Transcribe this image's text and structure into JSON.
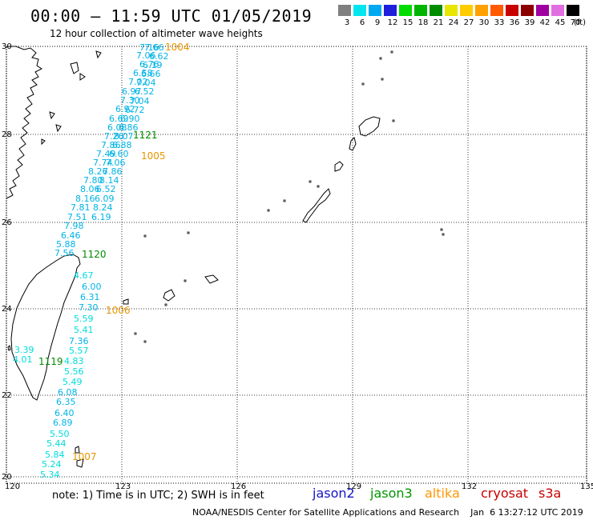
{
  "header": {
    "title": "00:00 – 11:59 UTC 01/05/2019",
    "subtitle": "12 hour collection of altimeter wave heights"
  },
  "colorbar": {
    "labels": [
      "3",
      "6",
      "9",
      "12",
      "15",
      "18",
      "21",
      "24",
      "27",
      "30",
      "33",
      "36",
      "39",
      "42",
      "45",
      "70"
    ],
    "colors": [
      "#7f7f7f",
      "#00e5ee",
      "#00a8f0",
      "#1e1edc",
      "#00dc00",
      "#00b400",
      "#008c00",
      "#e6e600",
      "#ffcc00",
      "#ffa000",
      "#ff5a00",
      "#c80000",
      "#8c0000",
      "#a000a0",
      "#e070e0",
      "#000000"
    ],
    "unit": "(ft)"
  },
  "axes": {
    "lon_ticks": [
      "120",
      "123",
      "126",
      "129",
      "132",
      "135"
    ],
    "lat_ticks": [
      "30",
      "28",
      "26",
      "24",
      "22",
      "20"
    ]
  },
  "wave_heights": [
    {
      "t": "7.16",
      "c": "#00b4e6"
    },
    {
      "t": "7.66",
      "c": "#00b4e6"
    },
    {
      "t": "7.06",
      "c": "#00b4e6"
    },
    {
      "t": "6.62",
      "c": "#00b4e6"
    },
    {
      "t": "6.76",
      "c": "#00b4e6"
    },
    {
      "t": "6.19",
      "c": "#00b4e6"
    },
    {
      "t": "6.58",
      "c": "#00b4e6"
    },
    {
      "t": "6.66",
      "c": "#00b4e6"
    },
    {
      "t": "7.02",
      "c": "#00b4e6"
    },
    {
      "t": "7.04",
      "c": "#00b4e6"
    },
    {
      "t": "6.97",
      "c": "#00b4e6"
    },
    {
      "t": "6.52",
      "c": "#00b4e6"
    },
    {
      "t": "7.30",
      "c": "#00b4e6"
    },
    {
      "t": "7.04",
      "c": "#00b4e6"
    },
    {
      "t": "6.92",
      "c": "#00b4e6"
    },
    {
      "t": "6.72",
      "c": "#00b4e6"
    },
    {
      "t": "6.69",
      "c": "#00b4e6"
    },
    {
      "t": "6.90",
      "c": "#00b4e6"
    },
    {
      "t": "6.08",
      "c": "#00b4e6"
    },
    {
      "t": "6.86",
      "c": "#00b4e6"
    },
    {
      "t": "7.26",
      "c": "#00b4e6"
    },
    {
      "t": "8.07",
      "c": "#00b4e6"
    },
    {
      "t": "7.86",
      "c": "#00b4e6"
    },
    {
      "t": "6.88",
      "c": "#00b4e6"
    },
    {
      "t": "7.49",
      "c": "#00b4e6"
    },
    {
      "t": "6.60",
      "c": "#00b4e6"
    },
    {
      "t": "7.74",
      "c": "#00b4e6"
    },
    {
      "t": "7.06",
      "c": "#00b4e6"
    },
    {
      "t": "8.26",
      "c": "#00b4e6"
    },
    {
      "t": "7.86",
      "c": "#00b4e6"
    },
    {
      "t": "7.80",
      "c": "#00b4e6"
    },
    {
      "t": "8.14",
      "c": "#00b4e6"
    },
    {
      "t": "8.06",
      "c": "#00b4e6"
    },
    {
      "t": "6.52",
      "c": "#00b4e6"
    },
    {
      "t": "8.16",
      "c": "#00b4e6"
    },
    {
      "t": "6.09",
      "c": "#00b4e6"
    },
    {
      "t": "7.81",
      "c": "#00b4e6"
    },
    {
      "t": "8.24",
      "c": "#00b4e6"
    },
    {
      "t": "7.51",
      "c": "#00b4e6"
    },
    {
      "t": "6.19",
      "c": "#00b4e6"
    },
    {
      "t": "7.98",
      "c": "#00b4e6"
    },
    {
      "t": "6.46",
      "c": "#00b4e6"
    },
    {
      "t": "5.88",
      "c": "#00b4e6"
    },
    {
      "t": "7.56",
      "c": "#00b4e6"
    },
    {
      "t": "4.67",
      "c": "#00dcdc"
    },
    {
      "t": "6.00",
      "c": "#00b4e6"
    },
    {
      "t": "6.31",
      "c": "#00b4e6"
    },
    {
      "t": "7.30",
      "c": "#00b4e6"
    },
    {
      "t": "5.59",
      "c": "#00dcdc"
    },
    {
      "t": "5.41",
      "c": "#00dcdc"
    },
    {
      "t": "7.36",
      "c": "#00b4e6"
    },
    {
      "t": "5.57",
      "c": "#00dcdc"
    },
    {
      "t": "4.83",
      "c": "#00dcdc"
    },
    {
      "t": "5.56",
      "c": "#00dcdc"
    },
    {
      "t": "5.49",
      "c": "#00dcdc"
    },
    {
      "t": "6.08",
      "c": "#00b4e6"
    },
    {
      "t": "6.35",
      "c": "#00b4e6"
    },
    {
      "t": "6.40",
      "c": "#00b4e6"
    },
    {
      "t": "6.89",
      "c": "#00b4e6"
    },
    {
      "t": "5.50",
      "c": "#00dcdc"
    },
    {
      "t": "5.44",
      "c": "#00dcdc"
    },
    {
      "t": "5.84",
      "c": "#00dcdc"
    },
    {
      "t": "5.24",
      "c": "#00dcdc"
    },
    {
      "t": "5.34",
      "c": "#00dcdc"
    },
    {
      "t": "3.39",
      "c": "#00dcdc"
    },
    {
      "t": "4.01",
      "c": "#00dcdc"
    }
  ],
  "pass_labels": [
    {
      "t": "1004",
      "c": "#e69600"
    },
    {
      "t": "1121",
      "c": "#008c00"
    },
    {
      "t": "1005",
      "c": "#e69600"
    },
    {
      "t": "1120",
      "c": "#008c00"
    },
    {
      "t": "1006",
      "c": "#e69600"
    },
    {
      "t": "1119",
      "c": "#008c00"
    },
    {
      "t": "1007",
      "c": "#e69600"
    }
  ],
  "footer": {
    "note": "note: 1) Time is in UTC; 2) SWH is in feet",
    "legend": [
      {
        "name": "jason2",
        "color": "#1414c8"
      },
      {
        "name": "jason3",
        "color": "#009600"
      },
      {
        "name": "altika",
        "color": "#ff9600"
      },
      {
        "name": "cryosat",
        "color": "#c80000"
      },
      {
        "name": "s3a",
        "color": "#c80000"
      }
    ],
    "credit": "NOAA/NESDIS Center for Satellite Applications and Research    Jan  6 13:27:12 UTC 2019"
  }
}
